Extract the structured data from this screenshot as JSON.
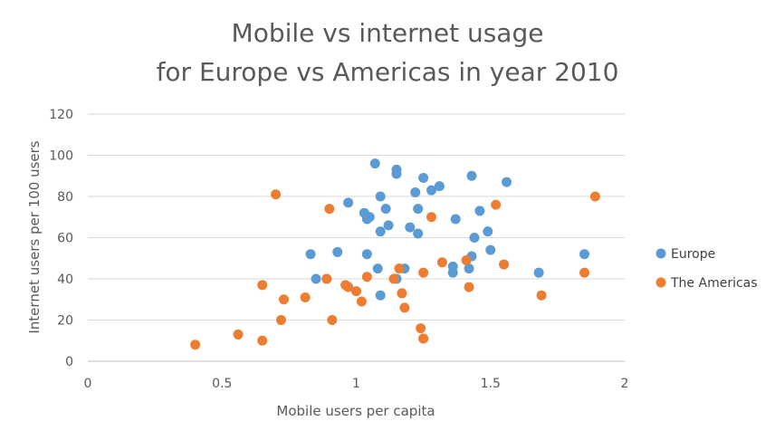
{
  "chart_data": {
    "type": "scatter",
    "title": [
      "Mobile vs internet usage",
      "for Europe vs Americas in year 2010"
    ],
    "xlabel": "Mobile users per capita",
    "ylabel": "Internet users per 100 users",
    "xlim": [
      0,
      2
    ],
    "ylim": [
      0,
      120
    ],
    "xticks": [
      0,
      0.5,
      1,
      1.5,
      2
    ],
    "xtick_labels": [
      "0",
      "0.5",
      "1",
      "1.5",
      "2"
    ],
    "yticks": [
      0,
      20,
      40,
      60,
      80,
      100,
      120
    ],
    "ytick_labels": [
      "0",
      "20",
      "40",
      "60",
      "80",
      "100",
      "120"
    ],
    "grid": "horizontal",
    "legend": "right",
    "series": [
      {
        "name": "Europe",
        "color": "#5b9bd5",
        "points": [
          [
            1.07,
            96
          ],
          [
            1.15,
            93
          ],
          [
            1.15,
            91
          ],
          [
            1.25,
            89
          ],
          [
            1.31,
            85
          ],
          [
            1.28,
            83
          ],
          [
            1.22,
            82
          ],
          [
            1.43,
            90
          ],
          [
            1.56,
            87
          ],
          [
            1.09,
            80
          ],
          [
            0.97,
            77
          ],
          [
            1.11,
            74
          ],
          [
            1.23,
            74
          ],
          [
            1.46,
            73
          ],
          [
            1.03,
            72
          ],
          [
            1.05,
            70
          ],
          [
            1.04,
            69
          ],
          [
            1.37,
            69
          ],
          [
            1.12,
            66
          ],
          [
            1.2,
            65
          ],
          [
            1.09,
            63
          ],
          [
            1.23,
            62
          ],
          [
            1.49,
            63
          ],
          [
            1.44,
            60
          ],
          [
            1.5,
            54
          ],
          [
            0.93,
            53
          ],
          [
            0.83,
            52
          ],
          [
            1.04,
            52
          ],
          [
            1.43,
            51
          ],
          [
            1.85,
            52
          ],
          [
            1.08,
            45
          ],
          [
            1.18,
            45
          ],
          [
            1.36,
            46
          ],
          [
            1.42,
            45
          ],
          [
            1.36,
            43
          ],
          [
            1.68,
            43
          ],
          [
            0.85,
            40
          ],
          [
            0.89,
            40
          ],
          [
            1.15,
            40
          ],
          [
            1.09,
            32
          ]
        ]
      },
      {
        "name": "The Americas",
        "color": "#ed7d31",
        "points": [
          [
            0.7,
            81
          ],
          [
            0.9,
            74
          ],
          [
            1.89,
            80
          ],
          [
            1.52,
            76
          ],
          [
            1.28,
            70
          ],
          [
            1.41,
            49
          ],
          [
            1.32,
            48
          ],
          [
            1.55,
            47
          ],
          [
            1.16,
            45
          ],
          [
            1.25,
            43
          ],
          [
            1.85,
            43
          ],
          [
            1.04,
            41
          ],
          [
            0.89,
            40
          ],
          [
            1.14,
            40
          ],
          [
            0.65,
            37
          ],
          [
            0.96,
            37
          ],
          [
            0.97,
            36
          ],
          [
            1.0,
            34
          ],
          [
            1.42,
            36
          ],
          [
            1.17,
            33
          ],
          [
            1.69,
            32
          ],
          [
            0.81,
            31
          ],
          [
            0.73,
            30
          ],
          [
            1.02,
            29
          ],
          [
            1.18,
            26
          ],
          [
            0.72,
            20
          ],
          [
            0.91,
            20
          ],
          [
            1.24,
            16
          ],
          [
            0.56,
            13
          ],
          [
            1.25,
            11
          ],
          [
            1.25,
            11
          ],
          [
            0.65,
            10
          ],
          [
            0.4,
            8
          ]
        ]
      }
    ]
  }
}
